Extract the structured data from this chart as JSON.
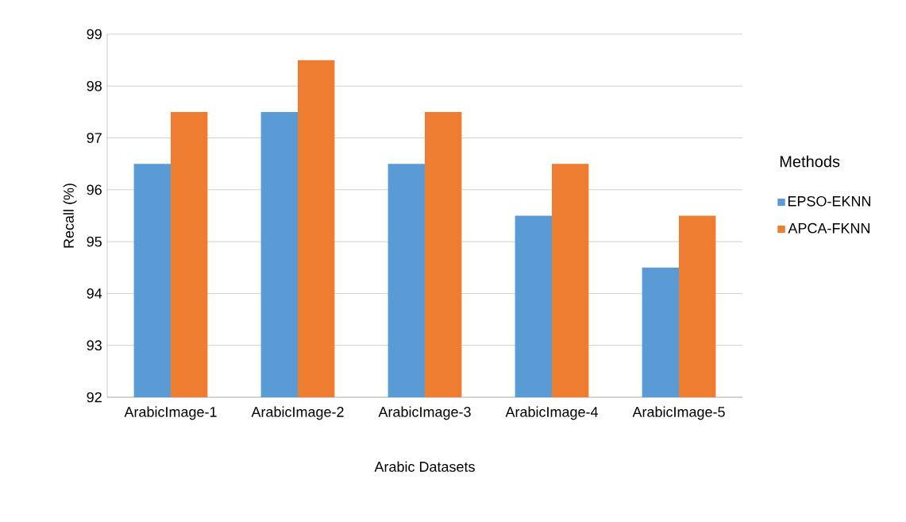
{
  "chart_data": {
    "type": "bar",
    "xlabel": "Arabic Datasets",
    "ylabel": "Recall (%)",
    "legend_title": "Methods",
    "categories": [
      "ArabicImage-1",
      "ArabicImage-2",
      "ArabicImage-3",
      "ArabicImage-4",
      "ArabicImage-5"
    ],
    "series": [
      {
        "name": "EPSO-EKNN",
        "color": "#5b9bd5",
        "values": [
          96.5,
          97.5,
          96.5,
          95.5,
          94.5
        ]
      },
      {
        "name": "APCA-FKNN",
        "color": "#ed7d31",
        "values": [
          97.5,
          98.5,
          97.5,
          96.5,
          95.5
        ]
      }
    ],
    "ylim": [
      92,
      99
    ],
    "yticks": [
      92,
      93,
      94,
      95,
      96,
      97,
      98,
      99
    ],
    "grid": "y",
    "legend": "right"
  }
}
